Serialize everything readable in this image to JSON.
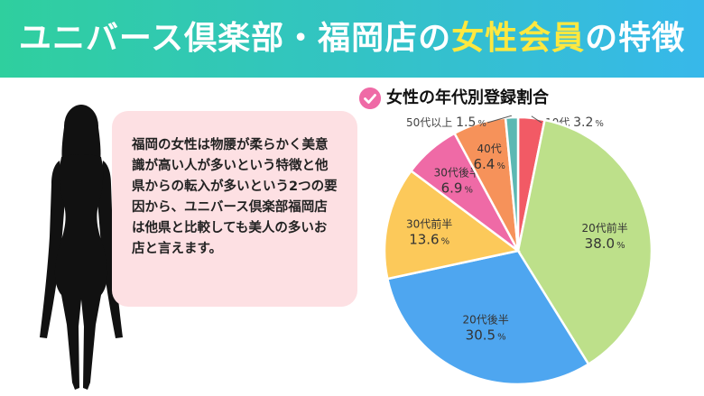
{
  "banner": {
    "title_pre": "ユニバース倶楽部・福岡店の",
    "title_highlight": "女性会員",
    "title_post": "の特徴"
  },
  "description": "福岡の女性は物腰が柔らかく美意識が高い人が多いという特徴と他県からの転入が多いという2つの要因から、ユニバース倶楽部福岡店は他県と比較しても美人の多いお店と言えます。",
  "colors": {
    "banner_start": "#2fcf9e",
    "banner_end": "#37b8ea",
    "highlight": "#ffe83f",
    "bubble": "#fde0e3",
    "check": "#ef6aa6"
  },
  "icons": {
    "chart_bullet": "check-circle-icon",
    "figure": "woman-silhouette"
  },
  "chart_data": {
    "type": "pie",
    "title": "女性の年代別登録割合",
    "unit": "%",
    "slices": [
      {
        "label": "10代",
        "value": 3.2,
        "color": "#f25a65"
      },
      {
        "label": "20代前半",
        "value": 38.0,
        "color": "#bde08a"
      },
      {
        "label": "20代後半",
        "value": 30.5,
        "color": "#4ea6f0"
      },
      {
        "label": "30代前半",
        "value": 13.6,
        "color": "#fcc95a"
      },
      {
        "label": "30代後半",
        "value": 6.9,
        "color": "#ef6aa6"
      },
      {
        "label": "40代",
        "value": 6.4,
        "color": "#f6925a"
      },
      {
        "label": "50代以上",
        "value": 1.5,
        "color": "#5cb8b3"
      }
    ]
  }
}
